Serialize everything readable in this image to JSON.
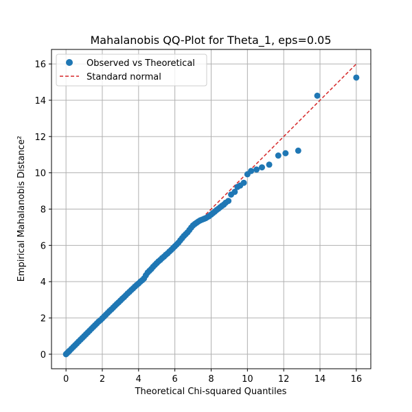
{
  "chart_data": {
    "type": "scatter",
    "title": "Mahalanobis QQ-Plot for Theta_1, eps=0.05",
    "xlabel": "Theoretical Chi-squared Quantiles",
    "ylabel": "Empirical Mahalanobis Distance²",
    "xlim": [
      -0.8,
      16.8
    ],
    "ylim": [
      -0.8,
      16.8
    ],
    "xticks": [
      0,
      2,
      4,
      6,
      8,
      10,
      12,
      14,
      16
    ],
    "yticks": [
      0,
      2,
      4,
      6,
      8,
      10,
      12,
      14,
      16
    ],
    "grid": true,
    "legend_position": "top-left",
    "series": [
      {
        "name": "Observed vs Theoretical",
        "kind": "scatter",
        "color": "#1f77b4",
        "x": [
          0.0,
          0.05,
          0.1,
          0.15,
          0.2,
          0.3,
          0.4,
          0.5,
          0.6,
          0.7,
          0.8,
          0.9,
          1.0,
          1.1,
          1.2,
          1.3,
          1.4,
          1.5,
          1.6,
          1.7,
          1.8,
          1.9,
          2.0,
          2.1,
          2.2,
          2.3,
          2.4,
          2.5,
          2.6,
          2.7,
          2.8,
          2.9,
          3.0,
          3.1,
          3.2,
          3.3,
          3.4,
          3.5,
          3.6,
          3.7,
          3.8,
          3.9,
          4.0,
          4.1,
          4.2,
          4.3,
          4.4,
          4.5,
          4.6,
          4.7,
          4.8,
          4.9,
          5.0,
          5.1,
          5.2,
          5.3,
          5.4,
          5.5,
          5.6,
          5.7,
          5.8,
          5.9,
          6.0,
          6.1,
          6.2,
          6.3,
          6.4,
          6.5,
          6.6,
          6.7,
          6.8,
          6.9,
          7.0,
          7.1,
          7.2,
          7.3,
          7.4,
          7.5,
          7.6,
          7.7,
          7.8,
          7.9,
          8.0,
          8.1,
          8.2,
          8.3,
          8.4,
          8.5,
          8.6,
          8.7,
          8.8,
          8.95,
          9.1,
          9.3,
          9.45,
          9.6,
          9.8,
          10.0,
          10.2,
          10.5,
          10.8,
          11.2,
          11.7,
          12.1,
          12.8,
          13.85,
          16.0
        ],
        "y": [
          0.0,
          0.05,
          0.1,
          0.15,
          0.2,
          0.3,
          0.4,
          0.5,
          0.6,
          0.7,
          0.8,
          0.9,
          1.0,
          1.1,
          1.2,
          1.3,
          1.4,
          1.5,
          1.6,
          1.7,
          1.8,
          1.88,
          1.98,
          2.08,
          2.18,
          2.28,
          2.38,
          2.47,
          2.57,
          2.67,
          2.77,
          2.86,
          2.96,
          3.06,
          3.15,
          3.25,
          3.35,
          3.44,
          3.54,
          3.63,
          3.73,
          3.82,
          3.9,
          4.0,
          4.08,
          4.18,
          4.35,
          4.5,
          4.6,
          4.7,
          4.82,
          4.92,
          5.02,
          5.12,
          5.2,
          5.3,
          5.38,
          5.48,
          5.56,
          5.66,
          5.75,
          5.85,
          5.95,
          6.05,
          6.15,
          6.28,
          6.4,
          6.52,
          6.62,
          6.72,
          6.85,
          6.98,
          7.1,
          7.18,
          7.25,
          7.32,
          7.38,
          7.42,
          7.46,
          7.5,
          7.56,
          7.62,
          7.7,
          7.78,
          7.86,
          7.95,
          8.02,
          8.1,
          8.18,
          8.25,
          8.35,
          8.45,
          8.8,
          8.95,
          9.22,
          9.3,
          9.45,
          9.92,
          10.1,
          10.18,
          10.3,
          10.45,
          10.95,
          11.08,
          11.22,
          14.25,
          15.25
        ]
      },
      {
        "name": "Standard normal",
        "kind": "line",
        "style": "dashed",
        "color": "#d62728",
        "x": [
          0,
          16
        ],
        "y": [
          0,
          16
        ]
      }
    ]
  }
}
